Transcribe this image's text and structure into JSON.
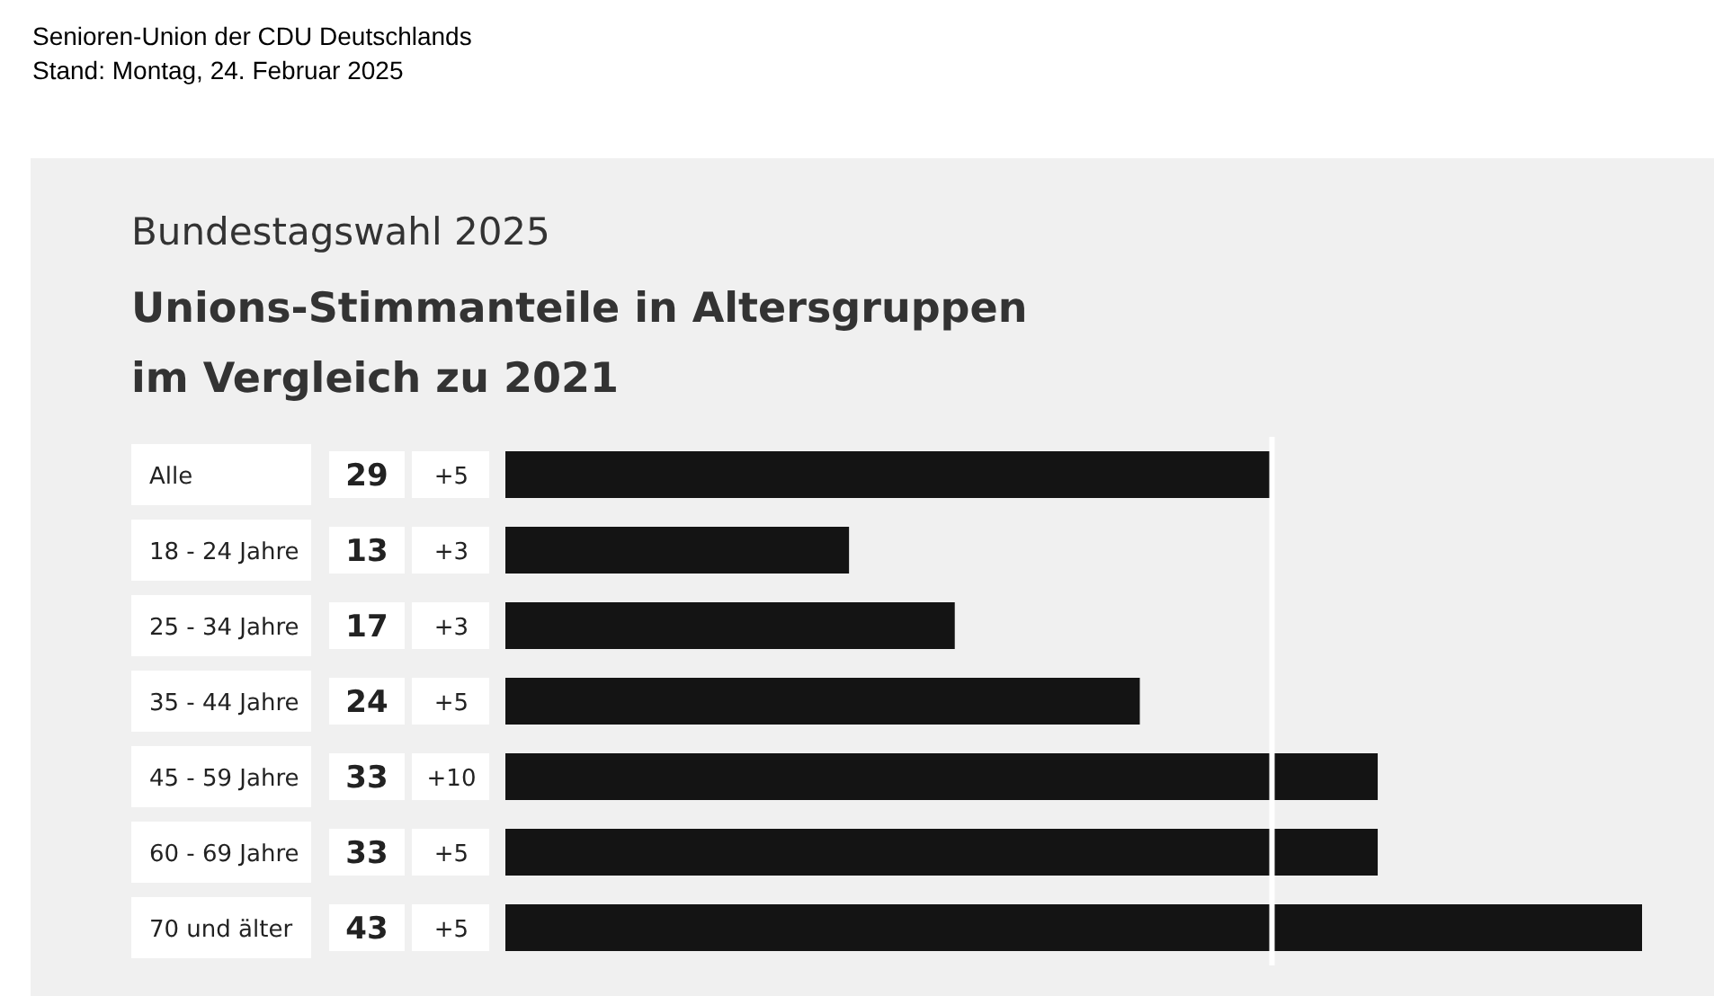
{
  "chart_data": {
    "type": "bar",
    "orientation": "horizontal",
    "subtitle": "Bundestagswahl 2025",
    "title": "Unions-Stimmanteile in Altersgruppen im Vergleich zu 2021",
    "categories": [
      "Alle",
      "18 - 24 Jahre",
      "25 - 34 Jahre",
      "35 - 44 Jahre",
      "45 - 59 Jahre",
      "60 - 69 Jahre",
      "70 und älter"
    ],
    "values": [
      29,
      13,
      17,
      24,
      33,
      33,
      43
    ],
    "color": "#141414",
    "data_labels": true,
    "tick_labels": "y",
    "ref_lines": [
      {
        "axis": "x",
        "value": 29,
        "color": "#ffffff"
      }
    ],
    "annotations": [
      "Senioren-Union der CDU Deutschlands",
      "Stand: Montag, 24. Februar 2025",
      "+5",
      "+3",
      "+3",
      "+5",
      "+10",
      "+5",
      "+5"
    ]
  }
}
